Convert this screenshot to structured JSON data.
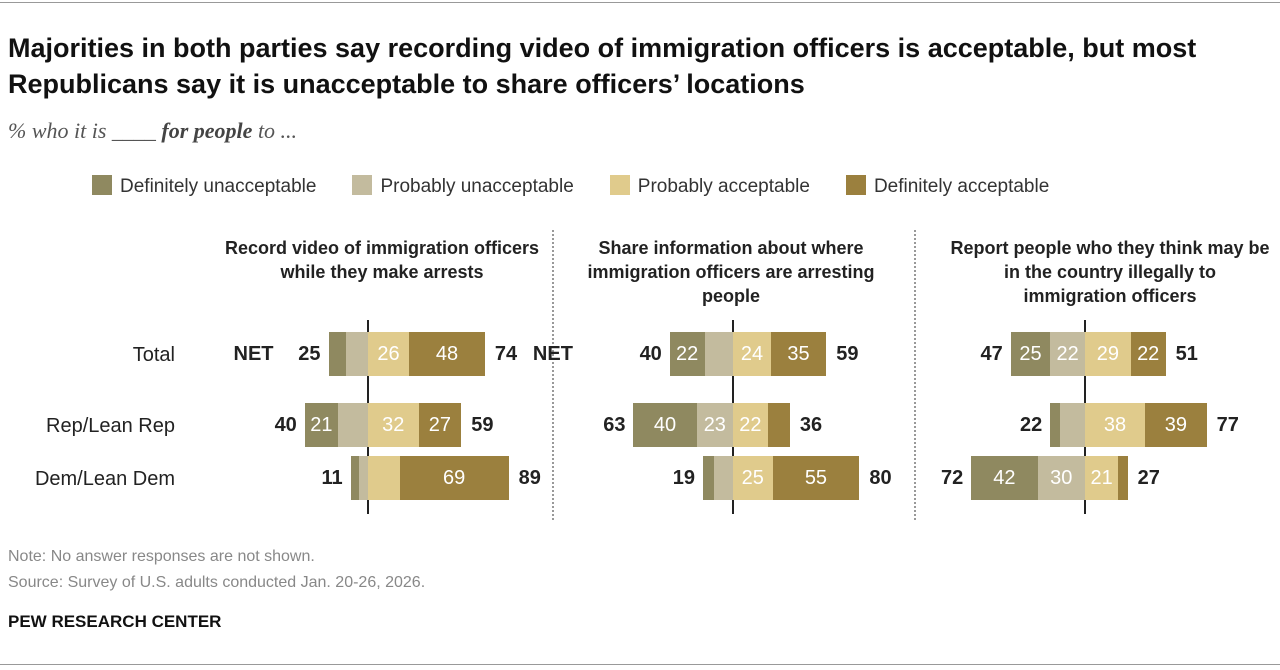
{
  "title": "Majorities in both parties say recording video of immigration officers is acceptable, but most Republicans say it is unacceptable to share officers’ locations",
  "subtitle": {
    "pre": "% who it is ____ ",
    "bold": "for people",
    "post": " to ..."
  },
  "legend": [
    "Definitely unacceptable",
    "Probably unacceptable",
    "Probably acceptable",
    "Definitely acceptable"
  ],
  "colors": [
    "#8f8960",
    "#c3bb9e",
    "#e0cb8c",
    "#9b803e"
  ],
  "note": "Note: No answer responses are not shown.",
  "source": "Source: Survey of U.S. adults conducted Jan. 20-26, 2026.",
  "brand": "PEW RESEARCH CENTER",
  "chart_data": {
    "type": "diverging-stacked-bar",
    "rows": [
      "Total",
      "Rep/Lean Rep",
      "Dem/Lean Dem"
    ],
    "net_label": "NET",
    "panels": [
      {
        "title": "Record video of immigration officers while they make arrests",
        "values": [
          [
            11,
            14,
            26,
            48
          ],
          [
            21,
            19,
            32,
            27
          ],
          [
            5,
            6,
            20,
            69
          ]
        ],
        "net_unacceptable": [
          25,
          40,
          11
        ],
        "net_acceptable": [
          74,
          59,
          89
        ]
      },
      {
        "title": "Share information about where immigration officers are arresting people",
        "values": [
          [
            22,
            18,
            24,
            35
          ],
          [
            40,
            23,
            22,
            14
          ],
          [
            7,
            12,
            25,
            55
          ]
        ],
        "net_unacceptable": [
          40,
          63,
          19
        ],
        "net_acceptable": [
          59,
          36,
          80
        ]
      },
      {
        "title": "Report people who they think may be in the country illegally to immigration officers",
        "values": [
          [
            25,
            22,
            29,
            22
          ],
          [
            6,
            16,
            38,
            39
          ],
          [
            42,
            30,
            21,
            6
          ]
        ],
        "net_unacceptable": [
          47,
          22,
          72
        ],
        "net_acceptable": [
          51,
          77,
          27
        ]
      }
    ],
    "labeled_segments": "values shown inside bars where printed"
  }
}
